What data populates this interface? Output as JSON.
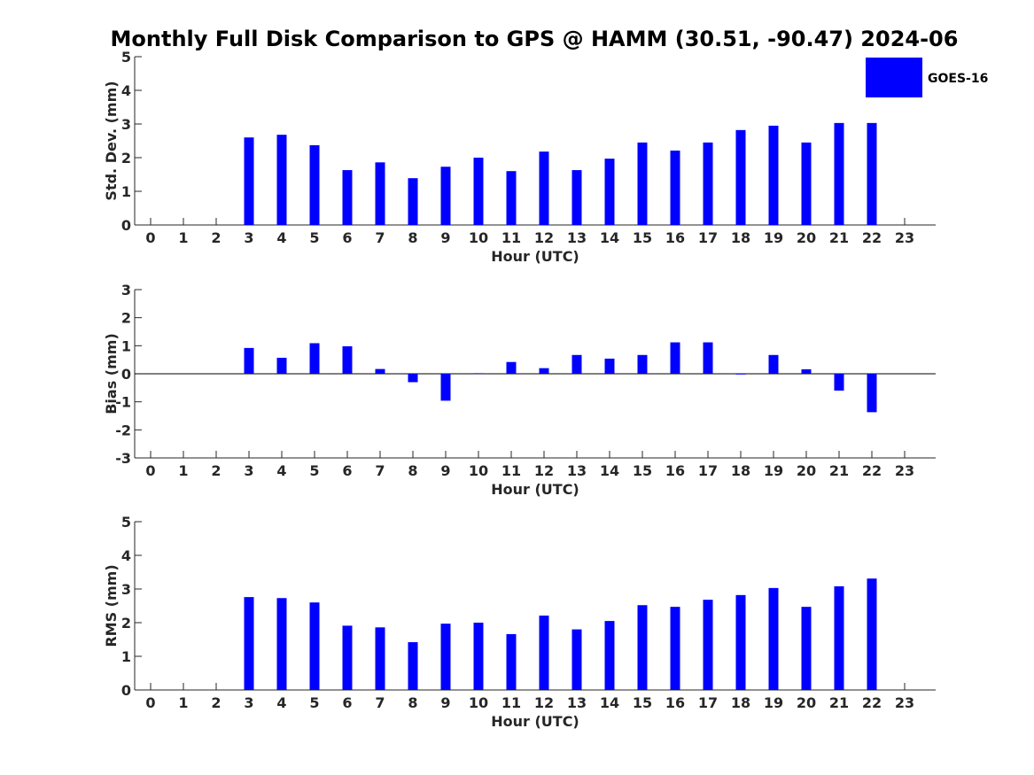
{
  "title": "Monthly Full Disk Comparison to GPS @ HAMM (30.51, -90.47) 2024-06",
  "legend": {
    "label": "GOES-16",
    "color": "#0000ff",
    "placement": "top-right"
  },
  "chart_data": [
    {
      "type": "bar",
      "name": "stddev",
      "xlabel": "Hour (UTC)",
      "ylabel": "Std. Dev. (mm)",
      "ylim": [
        0,
        5
      ],
      "yticks": [
        0,
        1,
        2,
        3,
        4,
        5
      ],
      "categories": [
        "0",
        "1",
        "2",
        "3",
        "4",
        "5",
        "6",
        "7",
        "8",
        "9",
        "10",
        "11",
        "12",
        "13",
        "14",
        "15",
        "16",
        "17",
        "18",
        "19",
        "20",
        "21",
        "22",
        "23"
      ],
      "series": [
        {
          "name": "GOES-16",
          "color": "#0000ff",
          "values": [
            null,
            null,
            null,
            2.6,
            2.68,
            2.37,
            1.63,
            1.86,
            1.39,
            1.73,
            2.0,
            1.6,
            2.18,
            1.63,
            1.97,
            2.45,
            2.21,
            2.45,
            2.82,
            2.95,
            2.45,
            3.03,
            3.03,
            null
          ]
        }
      ]
    },
    {
      "type": "bar",
      "name": "bias",
      "xlabel": "Hour (UTC)",
      "ylabel": "Bias (mm)",
      "ylim": [
        -3,
        3
      ],
      "yticks": [
        -3,
        -2,
        -1,
        0,
        1,
        2,
        3
      ],
      "categories": [
        "0",
        "1",
        "2",
        "3",
        "4",
        "5",
        "6",
        "7",
        "8",
        "9",
        "10",
        "11",
        "12",
        "13",
        "14",
        "15",
        "16",
        "17",
        "18",
        "19",
        "20",
        "21",
        "22",
        "23"
      ],
      "series": [
        {
          "name": "GOES-16",
          "color": "#0000ff",
          "values": [
            null,
            null,
            null,
            0.92,
            0.57,
            1.09,
            0.98,
            0.17,
            -0.3,
            -0.96,
            0.02,
            0.42,
            0.2,
            0.67,
            0.54,
            0.67,
            1.12,
            1.12,
            0.0,
            0.67,
            0.16,
            -0.6,
            -1.37,
            null
          ]
        }
      ]
    },
    {
      "type": "bar",
      "name": "rms",
      "xlabel": "Hour (UTC)",
      "ylabel": "RMS (mm)",
      "ylim": [
        0,
        5
      ],
      "yticks": [
        0,
        1,
        2,
        3,
        4,
        5
      ],
      "categories": [
        "0",
        "1",
        "2",
        "3",
        "4",
        "5",
        "6",
        "7",
        "8",
        "9",
        "10",
        "11",
        "12",
        "13",
        "14",
        "15",
        "16",
        "17",
        "18",
        "19",
        "20",
        "21",
        "22",
        "23"
      ],
      "series": [
        {
          "name": "GOES-16",
          "color": "#0000ff",
          "values": [
            null,
            null,
            null,
            2.76,
            2.73,
            2.6,
            1.91,
            1.86,
            1.42,
            1.97,
            2.0,
            1.66,
            2.21,
            1.8,
            2.05,
            2.52,
            2.47,
            2.68,
            2.82,
            3.03,
            2.47,
            3.08,
            3.31,
            null
          ]
        }
      ]
    }
  ]
}
